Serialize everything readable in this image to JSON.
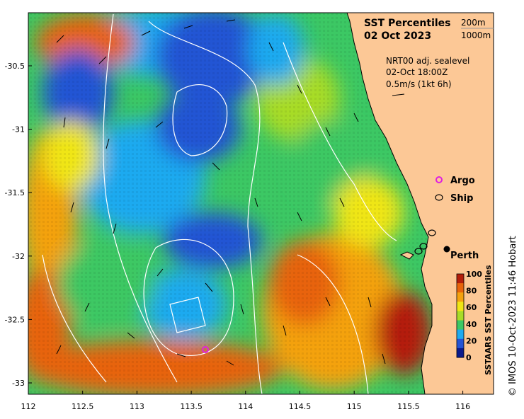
{
  "title": {
    "line1": "SST Percentiles",
    "line2": "02 Oct 2023"
  },
  "contour_key": {
    "depth1": "200m",
    "depth2": "1000m"
  },
  "current_info": {
    "line1": "NRT00 adj. sealevel",
    "line2": "02-Oct 18:00Z",
    "line3": "0.5m/s (1kt 6h)"
  },
  "legend": {
    "argo": "Argo",
    "ship": "Ship"
  },
  "city": "Perth",
  "colorbar": {
    "title": "SSTAARS SST Percentiles",
    "ticks": [
      "0",
      "20",
      "40",
      "60",
      "80",
      "100"
    ],
    "colors": [
      "#0a1a8c",
      "#2454d4",
      "#1eaaf0",
      "#3cc864",
      "#a8dc28",
      "#f0e614",
      "#f4a20e",
      "#e8640a",
      "#b41e0a"
    ]
  },
  "credit": "© IMOS 10-Oct-2023 11:46 Hobart",
  "axes": {
    "x_ticks": [
      "112",
      "112.5",
      "113",
      "113.5",
      "114",
      "114.5",
      "115",
      "115.5",
      "116"
    ],
    "y_ticks": [
      "-30.5",
      "-31",
      "-31.5",
      "-32",
      "-32.5",
      "-33"
    ]
  },
  "colors": {
    "land": "#fcc896",
    "contour": "#ffffff",
    "argo": "#e020e0"
  }
}
